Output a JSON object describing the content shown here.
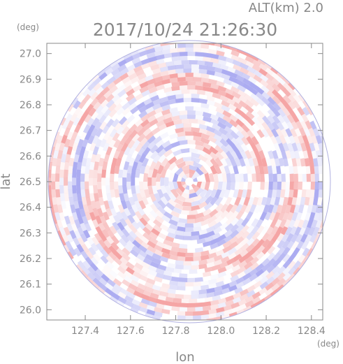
{
  "chart_data": {
    "type": "heatmap",
    "title": "2017/10/24 21:26:30",
    "altitude_label": "ALT(km) 2.0",
    "xlabel": "lon",
    "ylabel": "lat",
    "x_unit": "(deg)",
    "y_unit": "(deg)",
    "xlim": [
      127.23,
      128.45
    ],
    "ylim": [
      25.96,
      27.04
    ],
    "x_ticks": [
      "127.4",
      "127.6",
      "127.8",
      "128.0",
      "128.2",
      "128.4"
    ],
    "y_ticks": [
      "26.0",
      "26.1",
      "26.2",
      "26.3",
      "26.4",
      "26.5",
      "26.6",
      "26.7",
      "26.8",
      "26.9",
      "27.0"
    ],
    "radar_center": {
      "lon": 127.86,
      "lat": 26.5
    },
    "colors": {
      "positive": "#f4a0a0",
      "negative": "#a8a8f0",
      "neutral": "#ffffff",
      "axis": "#888888"
    },
    "grid": false
  }
}
